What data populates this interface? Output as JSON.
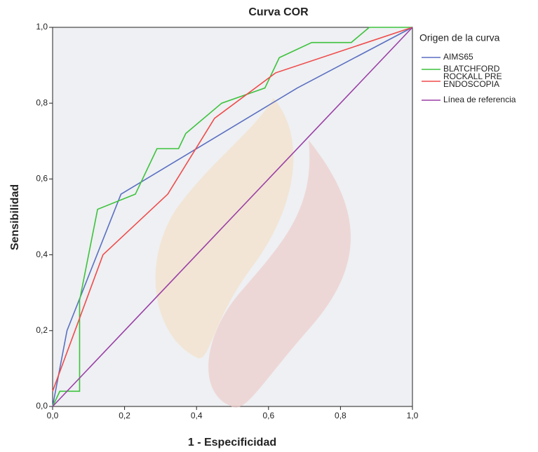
{
  "chart_data": {
    "type": "line",
    "title": "Curva COR",
    "x_label": "1 - Especificidad",
    "y_label": "Sensibilidad",
    "legend_title": "Origen de la curva",
    "legend": "right",
    "xlim": [
      0,
      1
    ],
    "ylim": [
      0,
      1
    ],
    "xticks": [
      {
        "value": 0,
        "label": "0,0"
      },
      {
        "value": 0.2,
        "label": "0,2"
      },
      {
        "value": 0.4,
        "label": "0,4"
      },
      {
        "value": 0.6,
        "label": "0,6"
      },
      {
        "value": 0.8,
        "label": "0,8"
      },
      {
        "value": 1,
        "label": "1,0"
      }
    ],
    "yticks": [
      {
        "value": 0,
        "label": "0,0"
      },
      {
        "value": 0.2,
        "label": "0,2"
      },
      {
        "value": 0.4,
        "label": "0,4"
      },
      {
        "value": 0.6,
        "label": "0,6"
      },
      {
        "value": 0.8,
        "label": "0,8"
      },
      {
        "value": 1,
        "label": "1,0"
      }
    ],
    "grid": false,
    "series": [
      {
        "name": "AIMS65",
        "color": "#5b6fc2",
        "x": [
          0,
          0.04,
          0.19,
          0.68,
          1
        ],
        "values": [
          0,
          0.2,
          0.56,
          0.84,
          1
        ]
      },
      {
        "name": "BLATCHFORD",
        "color": "#3cc23c",
        "x": [
          0,
          0.02,
          0.075,
          0.075,
          0.1,
          0.125,
          0.23,
          0.29,
          0.35,
          0.37,
          0.47,
          0.59,
          0.63,
          0.72,
          0.83,
          0.88,
          1
        ],
        "values": [
          0,
          0.04,
          0.04,
          0.28,
          0.4,
          0.52,
          0.56,
          0.68,
          0.68,
          0.72,
          0.8,
          0.84,
          0.92,
          0.96,
          0.96,
          1,
          1
        ]
      },
      {
        "name": "ROCKALL PRE ENDOSCOPIA",
        "color": "#f04a4a",
        "x": [
          0,
          0.14,
          0.32,
          0.45,
          0.62,
          1
        ],
        "values": [
          0.04,
          0.4,
          0.56,
          0.76,
          0.88,
          1
        ]
      },
      {
        "name": "Línea de referencia",
        "color": "#9b3fa6",
        "x": [
          0,
          1
        ],
        "values": [
          0,
          1
        ]
      }
    ]
  }
}
